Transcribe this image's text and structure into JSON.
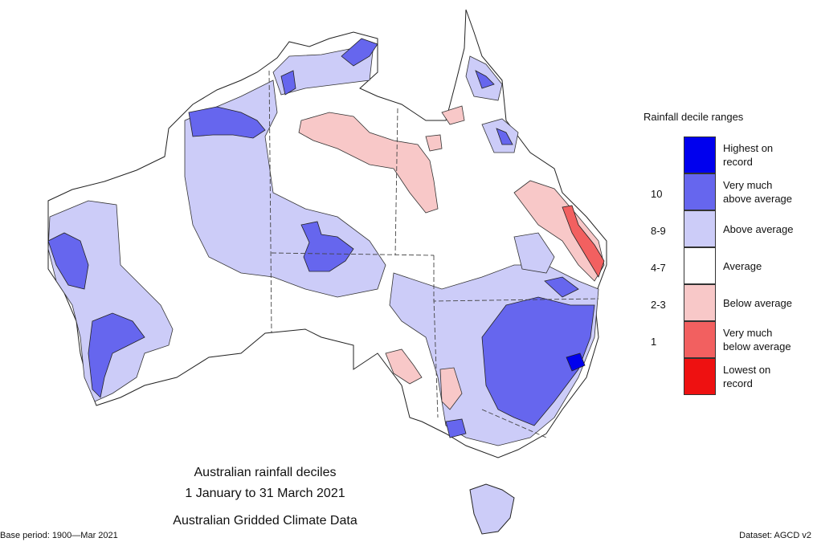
{
  "legend": {
    "title": "Rainfall decile ranges",
    "items": [
      {
        "label_line1": "Highest on",
        "label_line2": "record",
        "decile": "",
        "color": "#0000ee"
      },
      {
        "label_line1": "Very much",
        "label_line2": "above average",
        "decile": "10",
        "color": "#6666ee"
      },
      {
        "label_line1": "Above average",
        "label_line2": "",
        "decile": "8-9",
        "color": "#ccccf8"
      },
      {
        "label_line1": "Average",
        "label_line2": "",
        "decile": "4-7",
        "color": "#ffffff"
      },
      {
        "label_line1": "Below average",
        "label_line2": "",
        "decile": "2-3",
        "color": "#f8c8c8"
      },
      {
        "label_line1": "Very much",
        "label_line2": "below average",
        "decile": "1",
        "color": "#f26060"
      },
      {
        "label_line1": "Lowest on",
        "label_line2": "record",
        "decile": "",
        "color": "#ee1111"
      }
    ]
  },
  "caption": {
    "line1": "Australian rainfall deciles",
    "line2": "1 January to 31 March 2021",
    "line3": "Australian Gridded Climate Data"
  },
  "footer": {
    "base_period": "Base period: 1900—Mar 2021",
    "dataset": "Dataset: AGCD v2"
  }
}
